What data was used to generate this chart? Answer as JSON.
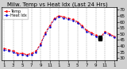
{
  "title": "Milw. Temp vs Heat Idx (Last 24 Hrs)",
  "bg_color": "#d0d0d0",
  "plot_bg": "#ffffff",
  "grid_color": "#888888",
  "red_color": "#ff0000",
  "blue_color": "#0000cc",
  "black_color": "#000000",
  "ylim": [
    28,
    72
  ],
  "ytick_values": [
    30,
    35,
    40,
    45,
    50,
    55,
    60,
    65,
    70
  ],
  "ytick_labels": [
    "30",
    "35",
    "40",
    "45",
    "50",
    "55",
    "60",
    "65",
    "70"
  ],
  "n_points": 25,
  "temp_values": [
    38,
    37,
    36,
    34,
    34,
    33,
    34,
    36,
    42,
    51,
    57,
    63,
    65,
    64,
    63,
    62,
    60,
    57,
    53,
    51,
    49,
    47,
    52,
    50,
    48
  ],
  "heat_values": [
    37,
    36,
    35,
    33,
    33,
    32,
    33,
    35,
    41,
    50,
    56,
    62,
    64,
    63,
    62,
    61,
    59,
    56,
    52,
    50,
    48,
    46,
    51,
    49,
    47
  ],
  "black_points_temp": [
    21
  ],
  "black_points_heat": [
    21
  ],
  "xtick_positions": [
    0,
    2,
    4,
    6,
    8,
    10,
    12,
    14,
    16,
    18,
    20,
    22,
    24
  ],
  "xtick_labels": [
    "1",
    "3",
    "5",
    "7",
    "9",
    "11",
    "1",
    "3",
    "5",
    "7",
    "9",
    "11",
    "1"
  ],
  "vgrid_positions": [
    0,
    2,
    4,
    6,
    8,
    10,
    12,
    14,
    16,
    18,
    20,
    22,
    24
  ],
  "title_fontsize": 5,
  "tick_fontsize": 4,
  "legend_fontsize": 3.5,
  "linewidth": 0.7,
  "markersize": 1.5,
  "figsize": [
    1.6,
    0.87
  ],
  "dpi": 100
}
